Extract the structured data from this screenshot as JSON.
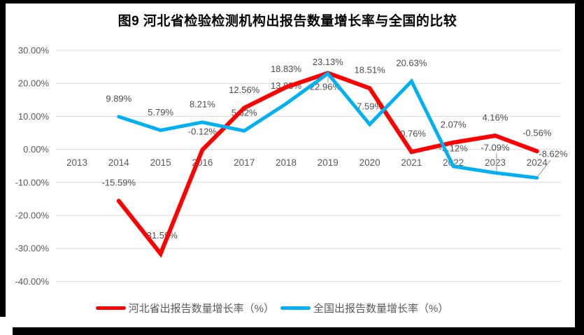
{
  "chart_data": {
    "type": "line",
    "title": "图9 河北省检验检测机构出报告数量增长率与全国的比较",
    "categories": [
      "2013",
      "2014",
      "2015",
      "2016",
      "2017",
      "2018",
      "2019",
      "2020",
      "2021",
      "2022",
      "2023",
      "2024"
    ],
    "series": [
      {
        "name": "河北省出报告数量增长率（%）",
        "color": "#FF0000",
        "values": [
          null,
          -15.59,
          -31.59,
          -0.12,
          12.56,
          18.83,
          23.13,
          18.51,
          -0.76,
          2.07,
          4.16,
          -0.56
        ],
        "labels": [
          null,
          "-15.59%",
          "-31.59%",
          "-0.12%",
          "12.56%",
          "18.83%",
          "23.13%",
          "18.51%",
          "-0.76%",
          "2.07%",
          "4.16%",
          "-0.56%"
        ]
      },
      {
        "name": "全国出报告数量增长率（%）",
        "color": "#00B0F0",
        "values": [
          null,
          9.89,
          5.79,
          8.21,
          5.62,
          13.83,
          22.96,
          7.59,
          20.63,
          -5.12,
          -7.09,
          -8.62
        ],
        "labels": [
          null,
          "9.89%",
          "5.79%",
          "8.21%",
          "5.62%",
          "13.83%",
          "22.96%",
          "7.59%",
          "20.63%",
          "-5.12%",
          "-7.09%",
          "-8.62%"
        ]
      }
    ],
    "y_axis": {
      "tick_labels": [
        "30.00%",
        "20.00%",
        "10.00%",
        "0.00%",
        "-10.00%",
        "-20.00%",
        "-30.00%",
        "-40.00%"
      ],
      "tick_values": [
        30,
        20,
        10,
        0,
        -10,
        -20,
        -30,
        -40
      ]
    },
    "ylim": [
      -40,
      30
    ],
    "grid": "horizontal",
    "legend_position": "bottom"
  },
  "colors": {
    "series_hebei": "#FF0000",
    "series_national": "#00B0F0",
    "gridline": "#D9D9D9",
    "axis_text": "#595959",
    "data_label_text": "#4D4D4D",
    "leader_line": "#A6A6A6",
    "title_text": "#000000",
    "frame": "#000000",
    "background": "#FFFFFF"
  }
}
